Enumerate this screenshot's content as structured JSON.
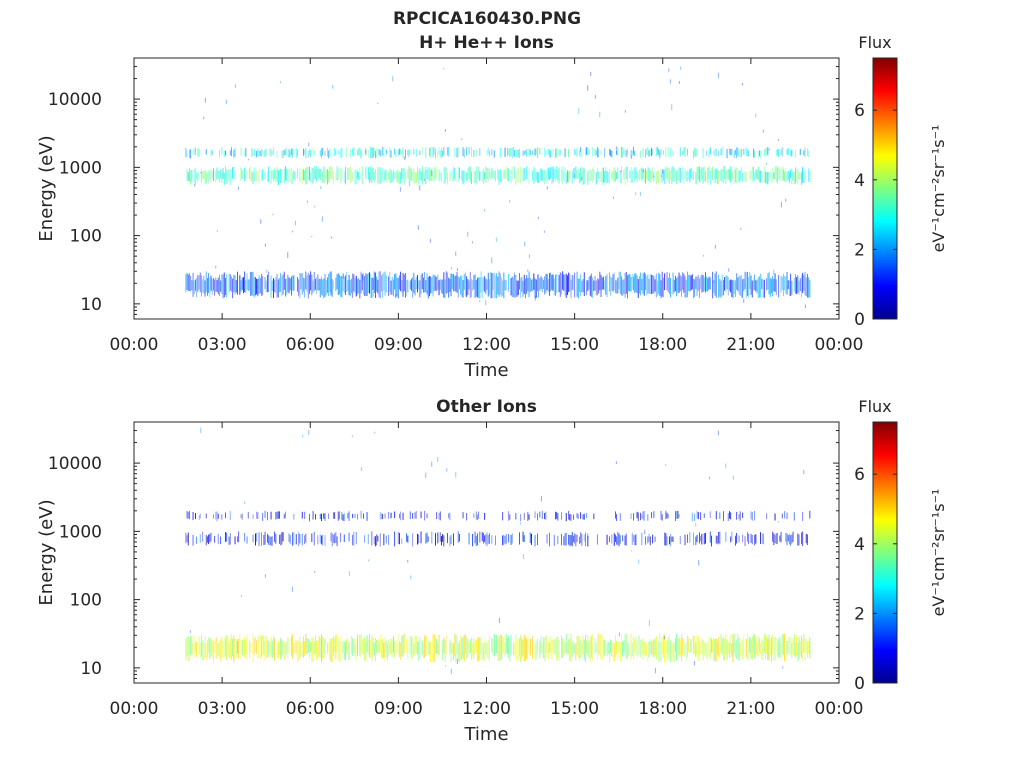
{
  "figure": {
    "title_line1": "RPCICA160430.PNG"
  },
  "colormap": "jet",
  "chart_data": [
    {
      "type": "heatmap",
      "title": "H+ He++ Ions",
      "xlabel": "Time",
      "ylabel": "Energy (eV)",
      "x_ticks": [
        "00:00",
        "03:00",
        "06:00",
        "09:00",
        "12:00",
        "15:00",
        "18:00",
        "21:00",
        "00:00"
      ],
      "x_range_hours": [
        0,
        24
      ],
      "y_scale": "log",
      "y_ticks": [
        "10",
        "100",
        "1000",
        "10000"
      ],
      "y_tick_values": [
        10,
        100,
        1000,
        10000
      ],
      "y_range": [
        6,
        40000
      ],
      "data_time_range_hours": [
        1.75,
        23.0
      ],
      "colorbar": {
        "label": "Flux",
        "units": "eV⁻¹cm⁻²sr⁻¹s⁻¹",
        "ticks": [
          "0",
          "2",
          "4",
          "6"
        ],
        "range": [
          0,
          7.5
        ]
      },
      "bands": [
        {
          "energy_range": [
            12,
            30
          ],
          "intensity": 1.6,
          "density": 0.95
        },
        {
          "energy_range": [
            550,
            1050
          ],
          "intensity": 3.3,
          "density": 0.85
        },
        {
          "energy_range": [
            1350,
            2000
          ],
          "intensity": 2.7,
          "density": 0.55
        }
      ],
      "background_noise": {
        "intensity": 1.2,
        "density": 0.06
      }
    },
    {
      "type": "heatmap",
      "title": "Other Ions",
      "xlabel": "Time",
      "ylabel": "Energy (eV)",
      "x_ticks": [
        "00:00",
        "03:00",
        "06:00",
        "09:00",
        "12:00",
        "15:00",
        "18:00",
        "21:00",
        "00:00"
      ],
      "x_range_hours": [
        0,
        24
      ],
      "y_scale": "log",
      "y_ticks": [
        "10",
        "100",
        "1000",
        "10000"
      ],
      "y_tick_values": [
        10,
        100,
        1000,
        10000
      ],
      "y_range": [
        6,
        40000
      ],
      "data_time_range_hours": [
        1.75,
        23.0
      ],
      "colorbar": {
        "label": "Flux",
        "units": "eV⁻¹cm⁻²sr⁻¹s⁻¹",
        "ticks": [
          "0",
          "2",
          "4",
          "6"
        ],
        "range": [
          0,
          7.5
        ]
      },
      "bands": [
        {
          "energy_range": [
            12,
            32
          ],
          "intensity": 4.3,
          "density": 0.95
        },
        {
          "energy_range": [
            600,
            1000
          ],
          "intensity": 1.0,
          "density": 0.45
        },
        {
          "energy_range": [
            1400,
            2000
          ],
          "intensity": 1.0,
          "density": 0.3
        }
      ],
      "background_noise": {
        "intensity": 1.2,
        "density": 0.03
      }
    }
  ]
}
